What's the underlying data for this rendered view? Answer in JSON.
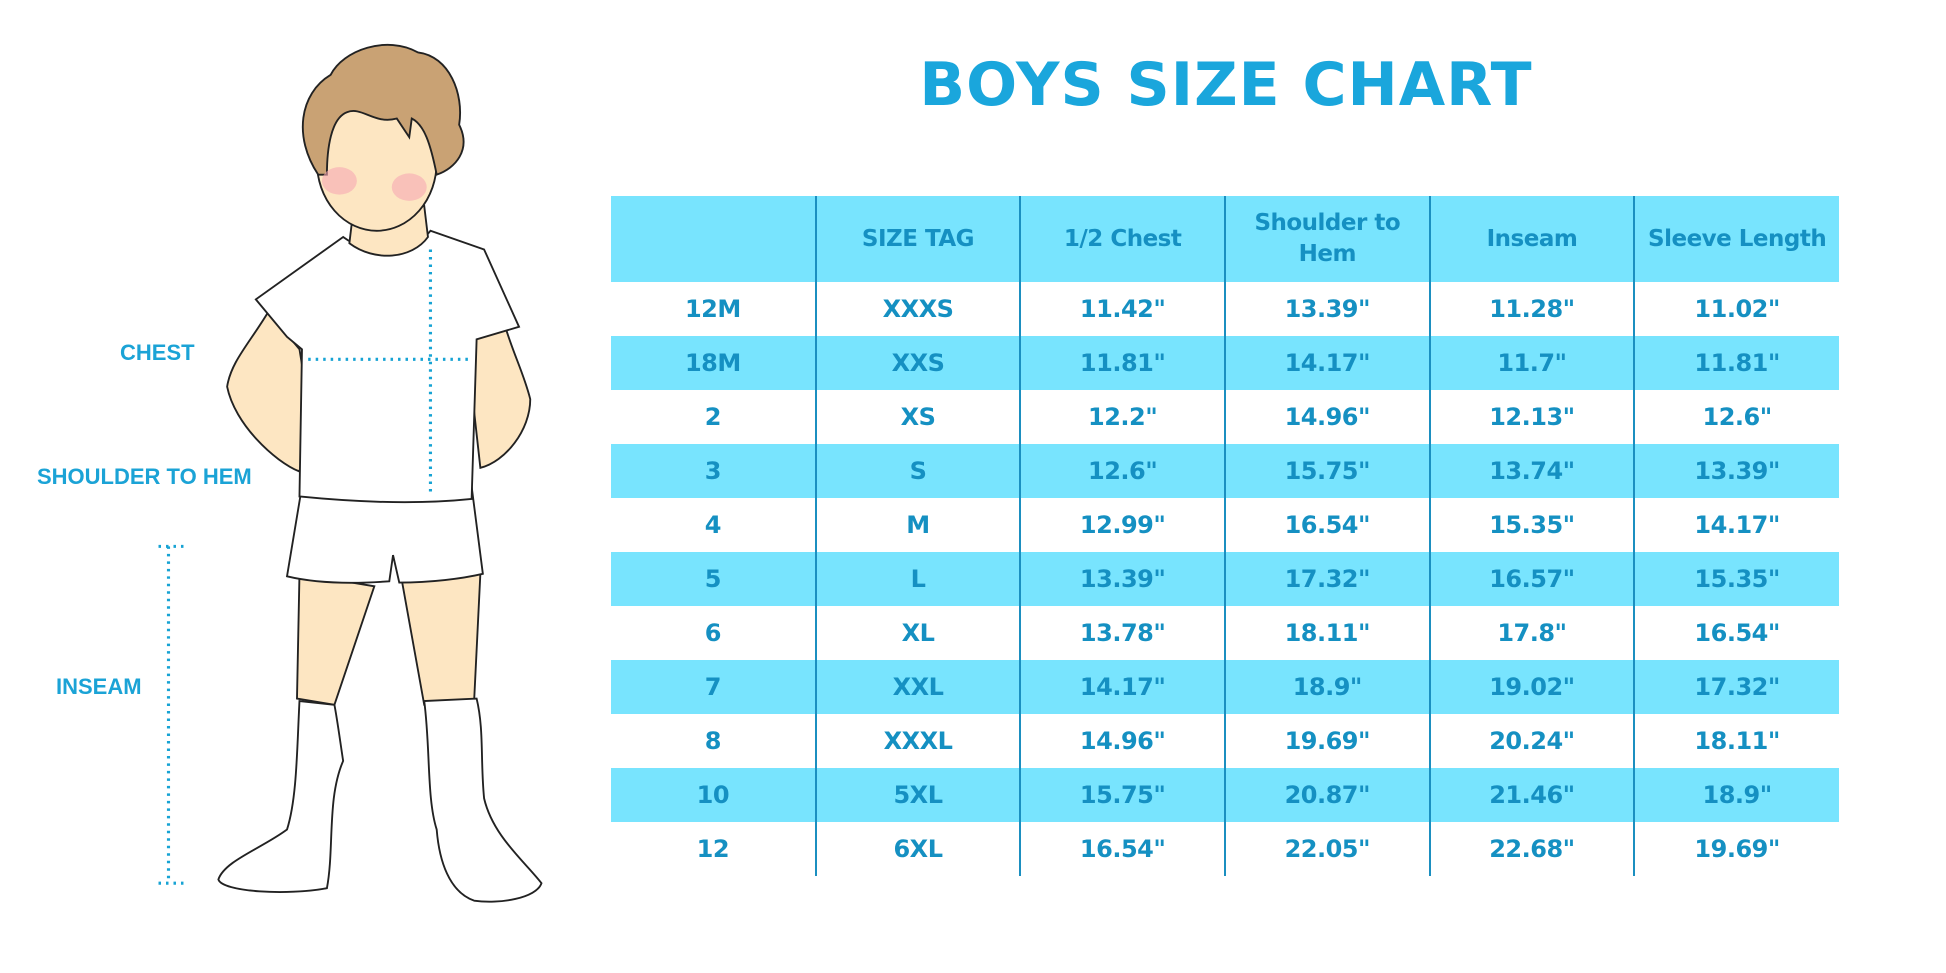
{
  "title": "BOYS SIZE CHART",
  "figure_labels": {
    "chest": "CHEST",
    "shoulder_to_hem": "SHOULDER TO HEM",
    "inseam": "INSEAM"
  },
  "colors": {
    "accent": "#1aa6dc",
    "header_bg": "#78e4fe",
    "text": "#1590c2",
    "divider": "#1b8fc0"
  },
  "table": {
    "headers": [
      "",
      "SIZE TAG",
      "1/2 Chest",
      "Shoulder to Hem",
      "Inseam",
      "Sleeve Length"
    ],
    "rows": [
      [
        "12M",
        "XXXS",
        "11.42\"",
        "13.39\"",
        "11.28\"",
        "11.02\""
      ],
      [
        "18M",
        "XXS",
        "11.81\"",
        "14.17\"",
        "11.7\"",
        "11.81\""
      ],
      [
        "2",
        "XS",
        "12.2\"",
        "14.96\"",
        "12.13\"",
        "12.6\""
      ],
      [
        "3",
        "S",
        "12.6\"",
        "15.75\"",
        "13.74\"",
        "13.39\""
      ],
      [
        "4",
        "M",
        "12.99\"",
        "16.54\"",
        "15.35\"",
        "14.17\""
      ],
      [
        "5",
        "L",
        "13.39\"",
        "17.32\"",
        "16.57\"",
        "15.35\""
      ],
      [
        "6",
        "XL",
        "13.78\"",
        "18.11\"",
        "17.8\"",
        "16.54\""
      ],
      [
        "7",
        "XXL",
        "14.17\"",
        "18.9\"",
        "19.02\"",
        "17.32\""
      ],
      [
        "8",
        "XXXL",
        "14.96\"",
        "19.69\"",
        "20.24\"",
        "18.11\""
      ],
      [
        "10",
        "5XL",
        "15.75\"",
        "20.87\"",
        "21.46\"",
        "18.9\""
      ],
      [
        "12",
        "6XL",
        "16.54\"",
        "22.05\"",
        "22.68\"",
        "19.69\""
      ]
    ]
  }
}
